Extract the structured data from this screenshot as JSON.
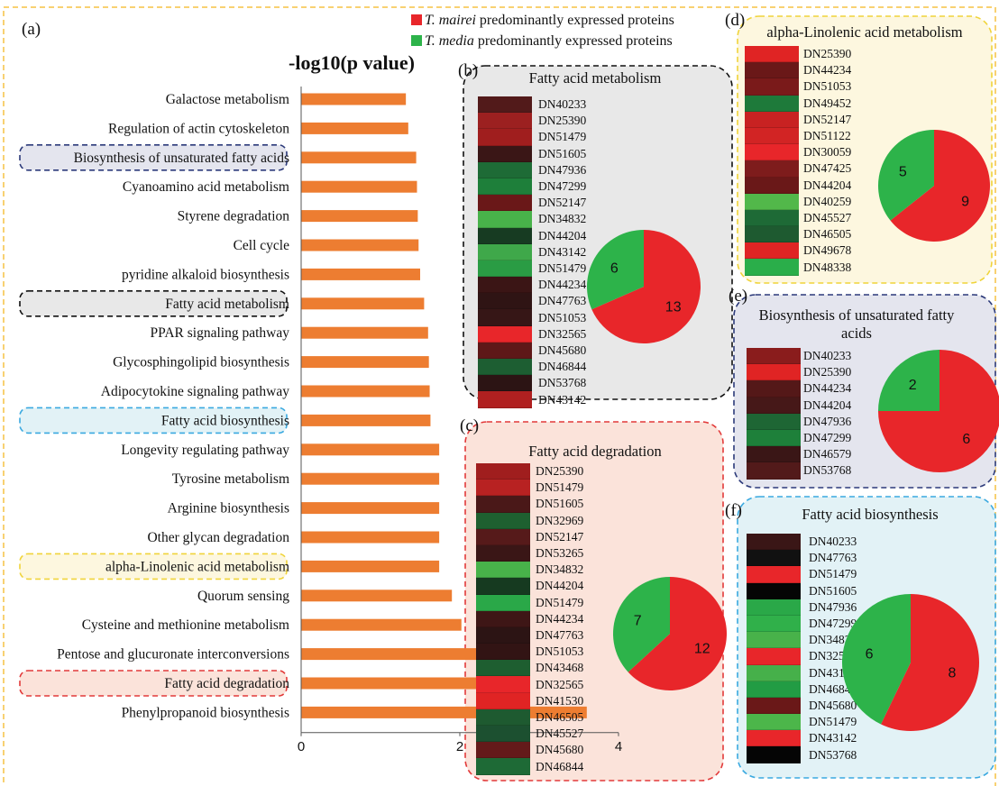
{
  "figure": {
    "panel_labels": [
      "(a)",
      "(b)",
      "(c)",
      "(d)",
      "(e)",
      "(f)"
    ],
    "legend": [
      {
        "species": "T. mairei",
        "text": " predominantly expressed proteins",
        "color": "#e8262a"
      },
      {
        "species": "T. media",
        "text": " predominantly expressed proteins",
        "color": "#2db34a"
      }
    ]
  },
  "colors": {
    "bar": "#ed7d31",
    "outer_dash": "#f5c244",
    "red": "#e8262a",
    "green": "#2db34a"
  },
  "chart_data": [
    {
      "type": "bar",
      "orientation": "horizontal",
      "title": "-log10(p value)",
      "categories": [
        "Galactose metabolism",
        "Regulation of actin cytoskeleton",
        "Biosynthesis of unsaturated fatty acids",
        "Cyanoamino acid metabolism",
        "Styrene degradation",
        "Cell cycle",
        "pyridine alkaloid biosynthesis",
        "Fatty acid metabolism",
        "PPAR signaling pathway",
        "Glycosphingolipid biosynthesis",
        "Adipocytokine signaling pathway",
        "Fatty acid biosynthesis",
        "Longevity regulating pathway",
        "Tyrosine metabolism",
        "Arginine biosynthesis",
        "Other glycan degradation",
        "alpha-Linolenic acid metabolism",
        "Quorum sensing",
        "Cysteine and methionine metabolism",
        "Pentose and glucuronate interconversions",
        "Fatty acid degradation",
        "Phenylpropanoid biosynthesis"
      ],
      "values": [
        1.32,
        1.35,
        1.45,
        1.46,
        1.47,
        1.48,
        1.5,
        1.55,
        1.6,
        1.61,
        1.62,
        1.63,
        1.74,
        1.74,
        1.74,
        1.74,
        1.74,
        1.9,
        2.02,
        2.42,
        2.6,
        3.6
      ],
      "xlim": [
        0,
        4
      ],
      "x_ticks": [
        "0",
        "2",
        "4"
      ],
      "highlighted": [
        {
          "category": "Biosynthesis of unsaturated fatty acids",
          "color": "#2c3a7a"
        },
        {
          "category": "Fatty acid metabolism",
          "color": "#111111"
        },
        {
          "category": "Fatty acid biosynthesis",
          "color": "#3aa9e0"
        },
        {
          "category": "alpha-Linolenic acid metabolism",
          "color": "#f0d43a"
        },
        {
          "category": "Fatty acid degradation",
          "color": "#e23a3a"
        }
      ]
    },
    {
      "type": "heatmap",
      "panel": "(b)",
      "title": "Fatty acid metabolism",
      "rows": [
        "DN40233",
        "DN25390",
        "DN51479",
        "DN51605",
        "DN47936",
        "DN47299",
        "DN52147",
        "DN34832",
        "DN44204",
        "DN43142",
        "DN51479",
        "DN44234",
        "DN47763",
        "DN51053",
        "DN32565",
        "DN45680",
        "DN46844",
        "DN53768",
        "DN43142"
      ],
      "colors": [
        "#521a1a",
        "#9c2020",
        "#a01e1e",
        "#3a1616",
        "#1e6b36",
        "#1e7f3a",
        "#6a1818",
        "#48b24a",
        "#173b22",
        "#3fa84a",
        "#2a9c44",
        "#3b1515",
        "#2f1414",
        "#361616",
        "#e8262a",
        "#5e1818",
        "#1d5e32",
        "#2c1414",
        "#b02020"
      ],
      "pie": {
        "red": 13,
        "green": 6,
        "labels": [
          "13",
          "6"
        ]
      }
    },
    {
      "type": "heatmap",
      "panel": "(c)",
      "title": "Fatty acid degradation",
      "rows": [
        "DN25390",
        "DN51479",
        "DN51605",
        "DN32969",
        "DN52147",
        "DN53265",
        "DN34832",
        "DN44204",
        "DN51479",
        "DN44234",
        "DN47763",
        "DN51053",
        "DN43468",
        "DN32565",
        "DN41530",
        "DN46505",
        "DN45527",
        "DN45680",
        "DN46844"
      ],
      "colors": [
        "#a01e1e",
        "#b82222",
        "#4a1818",
        "#1e6030",
        "#561a1a",
        "#3a1616",
        "#48b24a",
        "#163a20",
        "#2aa848",
        "#3e1616",
        "#2c1414",
        "#321414",
        "#1e5e30",
        "#e8262a",
        "#e02424",
        "#1e5a30",
        "#1c5030",
        "#641a1a",
        "#1e6a36"
      ],
      "pie": {
        "red": 12,
        "green": 7,
        "labels": [
          "12",
          "7"
        ]
      }
    },
    {
      "type": "heatmap",
      "panel": "(d)",
      "title": "alpha-Linolenic acid metabolism",
      "rows": [
        "DN25390",
        "DN44234",
        "DN51053",
        "DN49452",
        "DN52147",
        "DN51122",
        "DN30059",
        "DN47425",
        "DN44204",
        "DN40259",
        "DN45527",
        "DN46505",
        "DN49678",
        "DN48338"
      ],
      "colors": [
        "#e02424",
        "#6a1818",
        "#7a1a1a",
        "#1e7a3a",
        "#c82222",
        "#d22424",
        "#e8262a",
        "#7e1c1c",
        "#6a1818",
        "#52b84a",
        "#1e6a36",
        "#1e5a30",
        "#e02424",
        "#2aae4a"
      ],
      "pie": {
        "red": 9,
        "green": 5,
        "labels": [
          "9",
          "5"
        ]
      }
    },
    {
      "type": "heatmap",
      "panel": "(e)",
      "title": "Biosynthesis of unsaturated fatty acids",
      "rows": [
        "DN40233",
        "DN25390",
        "DN44234",
        "DN44204",
        "DN47936",
        "DN47299",
        "DN46579",
        "DN53768"
      ],
      "colors": [
        "#8a1c1c",
        "#e02424",
        "#541818",
        "#461818",
        "#1e6634",
        "#1e803a",
        "#3a1616",
        "#521a1a"
      ],
      "pie": {
        "red": 6,
        "green": 2,
        "labels": [
          "6",
          "2"
        ]
      }
    },
    {
      "type": "heatmap",
      "panel": "(f)",
      "title": "Fatty acid biosynthesis",
      "rows": [
        "DN40233",
        "DN47763",
        "DN51479",
        "DN51605",
        "DN47936",
        "DN47299",
        "DN34832",
        "DN32565",
        "DN43142",
        "DN46844",
        "DN45680",
        "DN51479",
        "DN43142",
        "DN53768"
      ],
      "colors": [
        "#3a1616",
        "#111111",
        "#e8262a",
        "#050505",
        "#2aa848",
        "#30b04a",
        "#48b24a",
        "#e8262a",
        "#46b04a",
        "#229c44",
        "#6a1818",
        "#4cb64a",
        "#e8262a",
        "#050505"
      ],
      "pie": {
        "red": 8,
        "green": 6,
        "labels": [
          "8",
          "6"
        ]
      }
    }
  ]
}
